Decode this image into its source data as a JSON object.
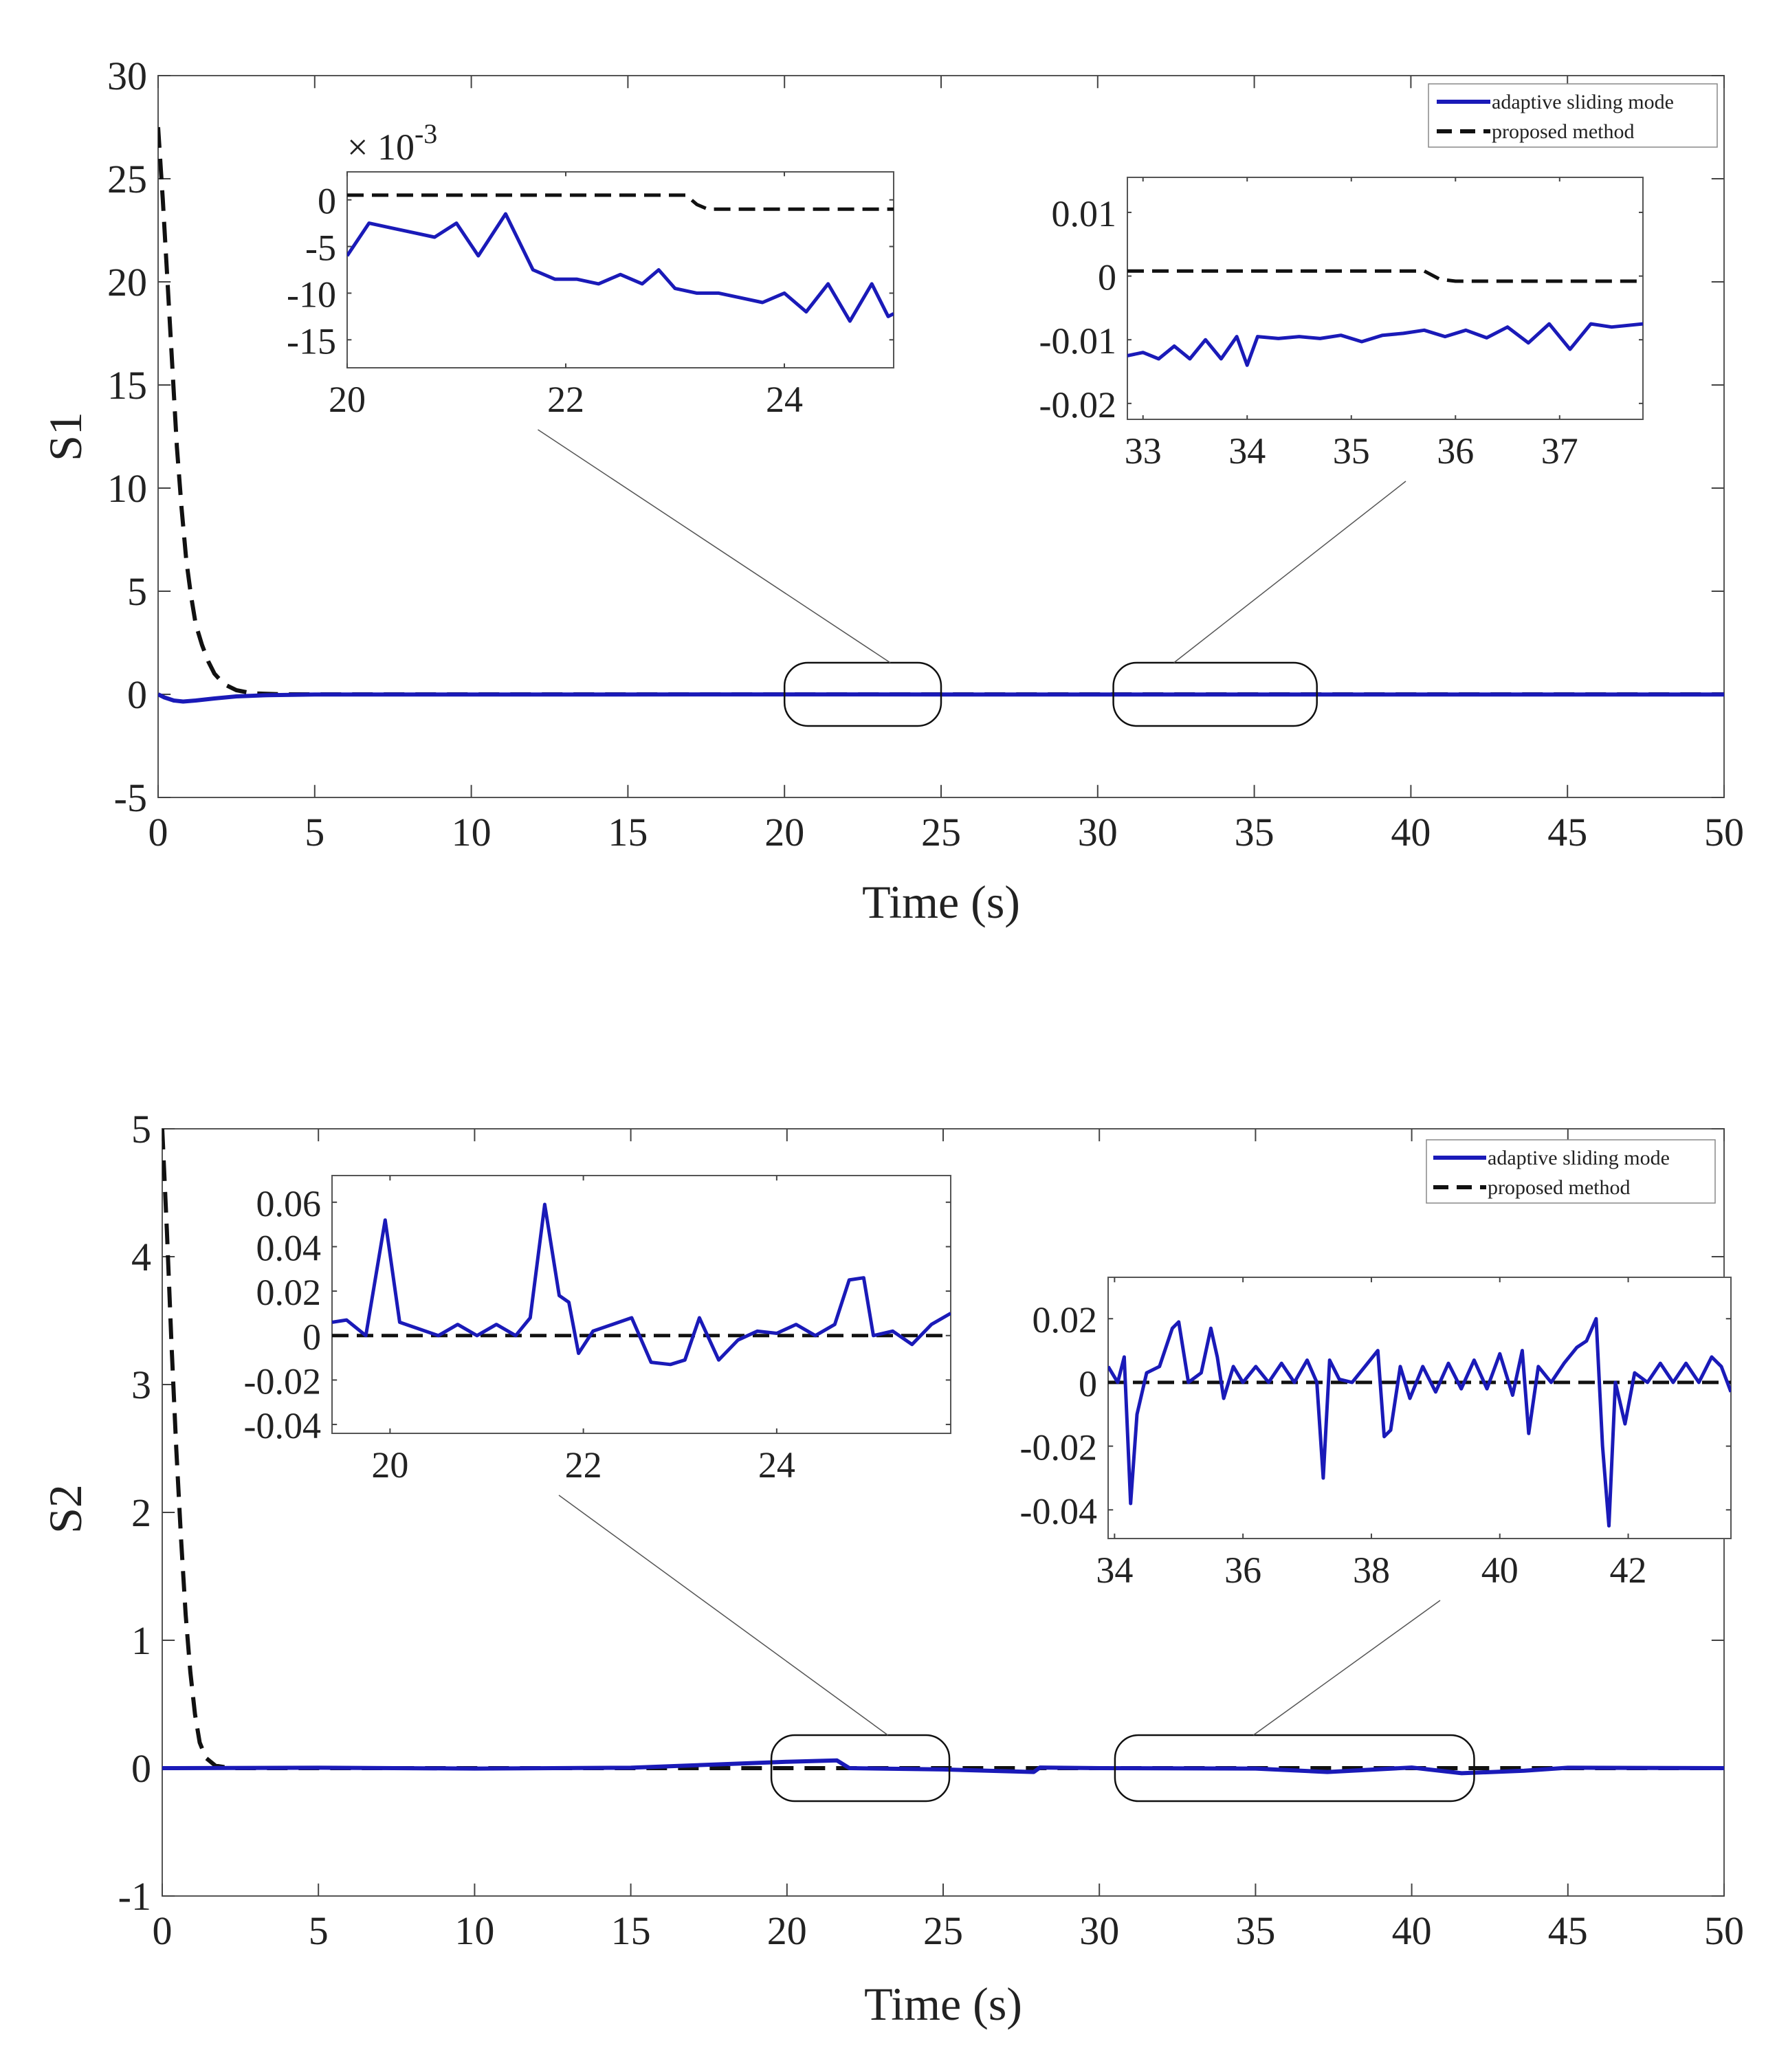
{
  "colors": {
    "adaptive": "#1a1ab8",
    "proposed": "#111111",
    "axis": "#444444"
  },
  "chart_data": [
    {
      "type": "line",
      "id": "s1",
      "ylabel": "S1",
      "xlabel": "Time (s)",
      "xlim": [
        0,
        50
      ],
      "ylim": [
        -5,
        30
      ],
      "xticks": [
        0,
        5,
        10,
        15,
        20,
        25,
        30,
        35,
        40,
        45,
        50
      ],
      "yticks": [
        -5,
        0,
        5,
        10,
        15,
        20,
        25,
        30
      ],
      "legend": {
        "position": "top-right",
        "entries": [
          "adaptive sliding mode",
          "proposed method"
        ]
      },
      "series": [
        {
          "name": "adaptive sliding mode",
          "style": "solid",
          "x": [
            0,
            0.2,
            0.5,
            0.8,
            1.2,
            1.8,
            2.5,
            3.5,
            5,
            10,
            20,
            30,
            40,
            50
          ],
          "y": [
            0,
            -0.15,
            -0.3,
            -0.35,
            -0.3,
            -0.2,
            -0.1,
            -0.04,
            -0.01,
            -0.01,
            -0.005,
            -0.01,
            -0.01,
            -0.01
          ]
        },
        {
          "name": "proposed method",
          "style": "dashed",
          "x": [
            0,
            0.15,
            0.3,
            0.45,
            0.6,
            0.75,
            0.9,
            1.05,
            1.2,
            1.4,
            1.6,
            1.8,
            2.1,
            2.5,
            3,
            4,
            50
          ],
          "y": [
            27.5,
            24,
            20,
            16,
            12,
            9,
            6.5,
            4.8,
            3.4,
            2.4,
            1.6,
            1.0,
            0.5,
            0.2,
            0.05,
            0,
            0
          ]
        }
      ],
      "insets": [
        {
          "id": "s1-inset-a",
          "xlim": [
            20,
            25
          ],
          "ylim": [
            -0.018,
            0.003
          ],
          "xticks": [
            20,
            22,
            24
          ],
          "yticks": [
            0,
            -0.005,
            -0.01,
            -0.015
          ],
          "ytick_labels": [
            "0",
            "-5",
            "-10",
            "-15"
          ],
          "exponent": "× 10",
          "exponent_power": "-3",
          "zoom_box": [
            20,
            25
          ],
          "series": [
            {
              "name": "adaptive sliding mode",
              "style": "solid",
              "x": [
                20,
                20.2,
                20.4,
                20.6,
                20.8,
                21.0,
                21.2,
                21.45,
                21.7,
                21.9,
                22.1,
                22.3,
                22.5,
                22.7,
                22.85,
                23.0,
                23.2,
                23.4,
                23.6,
                23.8,
                24.0,
                24.2,
                24.4,
                24.6,
                24.8,
                24.95,
                25.0
              ],
              "y": [
                -0.006,
                -0.0025,
                -0.003,
                -0.0035,
                -0.004,
                -0.0025,
                -0.006,
                -0.0015,
                -0.0075,
                -0.0085,
                -0.0085,
                -0.009,
                -0.008,
                -0.009,
                -0.0075,
                -0.0095,
                -0.01,
                -0.01,
                -0.0105,
                -0.011,
                -0.01,
                -0.012,
                -0.009,
                -0.013,
                -0.009,
                -0.0125,
                -0.0122
              ]
            },
            {
              "name": "proposed method",
              "style": "dashed",
              "x": [
                20,
                23.1,
                23.2,
                23.3,
                25
              ],
              "y": [
                0.0005,
                0.0005,
                -0.0005,
                -0.001,
                -0.001
              ]
            }
          ]
        },
        {
          "id": "s1-inset-b",
          "xlim": [
            32.85,
            37.8
          ],
          "ylim": [
            -0.0225,
            0.0155
          ],
          "xticks": [
            33,
            34,
            35,
            36,
            37
          ],
          "yticks": [
            0.01,
            0,
            -0.01,
            -0.02
          ],
          "ytick_labels": [
            "0.01",
            "0",
            "-0.01",
            "-0.02"
          ],
          "zoom_box": [
            30.5,
            37
          ],
          "series": [
            {
              "name": "adaptive sliding mode",
              "style": "solid",
              "x": [
                32.85,
                33.0,
                33.15,
                33.3,
                33.45,
                33.6,
                33.75,
                33.9,
                34.0,
                34.1,
                34.3,
                34.5,
                34.7,
                34.9,
                35.1,
                35.3,
                35.5,
                35.7,
                35.9,
                36.1,
                36.3,
                36.5,
                36.7,
                36.9,
                37.1,
                37.3,
                37.5,
                37.8
              ],
              "y": [
                -0.0125,
                -0.012,
                -0.013,
                -0.011,
                -0.013,
                -0.01,
                -0.013,
                -0.0095,
                -0.014,
                -0.0095,
                -0.0098,
                -0.0095,
                -0.0098,
                -0.0093,
                -0.0103,
                -0.0093,
                -0.009,
                -0.0085,
                -0.0095,
                -0.0085,
                -0.0097,
                -0.008,
                -0.0105,
                -0.0075,
                -0.0115,
                -0.0075,
                -0.008,
                -0.0075
              ]
            },
            {
              "name": "proposed method",
              "style": "dashed",
              "x": [
                32.85,
                35.7,
                35.85,
                36.0,
                37.8
              ],
              "y": [
                0.0008,
                0.0008,
                -0.0005,
                -0.0008,
                -0.0008
              ]
            }
          ]
        }
      ]
    },
    {
      "type": "line",
      "id": "s2",
      "ylabel": "S2",
      "xlabel": "Time (s)",
      "xlim": [
        0,
        50
      ],
      "ylim": [
        -1,
        5
      ],
      "xticks": [
        0,
        5,
        10,
        15,
        20,
        25,
        30,
        35,
        40,
        45,
        50
      ],
      "yticks": [
        -1,
        0,
        1,
        2,
        3,
        4,
        5
      ],
      "legend": {
        "position": "top-right",
        "entries": [
          "adaptive sliding mode",
          "proposed method"
        ]
      },
      "series": [
        {
          "name": "adaptive sliding mode",
          "style": "solid",
          "x": [
            0,
            5,
            10,
            15,
            20,
            21.6,
            22,
            25,
            27.9,
            28.1,
            30,
            35,
            37.3,
            40,
            41.6,
            43.6,
            45,
            50
          ],
          "y": [
            0,
            0.003,
            -0.003,
            0.003,
            0.05,
            0.06,
            0,
            -0.01,
            -0.03,
            0.005,
            0,
            -0.003,
            -0.03,
            0.005,
            -0.04,
            -0.02,
            0.003,
            0
          ]
        },
        {
          "name": "proposed method",
          "style": "dashed",
          "x": [
            0,
            0.15,
            0.3,
            0.45,
            0.6,
            0.75,
            0.9,
            1.05,
            1.2,
            1.4,
            1.7,
            2.2,
            50
          ],
          "y": [
            5,
            4.2,
            3.3,
            2.5,
            1.8,
            1.2,
            0.75,
            0.42,
            0.2,
            0.08,
            0.02,
            0,
            0
          ]
        }
      ],
      "insets": [
        {
          "id": "s2-inset-a",
          "xlim": [
            19.4,
            25.8
          ],
          "ylim": [
            -0.044,
            0.072
          ],
          "xticks": [
            20,
            22,
            24
          ],
          "yticks": [
            0.06,
            0.04,
            0.02,
            0,
            -0.02,
            -0.04
          ],
          "ytick_labels": [
            "0.06",
            "0.04",
            "0.02",
            "0",
            "-0.02",
            "-0.04"
          ],
          "zoom_box": [
            19.5,
            25.2
          ],
          "series": [
            {
              "name": "adaptive sliding mode",
              "style": "solid",
              "x": [
                19.4,
                19.55,
                19.75,
                19.95,
                20.1,
                20.3,
                20.5,
                20.7,
                20.9,
                21.1,
                21.3,
                21.45,
                21.6,
                21.75,
                21.85,
                21.95,
                22.1,
                22.3,
                22.5,
                22.7,
                22.9,
                23.05,
                23.2,
                23.4,
                23.6,
                23.8,
                24.0,
                24.2,
                24.4,
                24.6,
                24.75,
                24.9,
                25.0,
                25.2,
                25.4,
                25.6,
                25.8
              ],
              "y": [
                0.006,
                0.007,
                0.0,
                0.052,
                0.006,
                0.003,
                0.0,
                0.005,
                0.0,
                0.005,
                0.0,
                0.008,
                0.059,
                0.018,
                0.015,
                -0.008,
                0.002,
                0.005,
                0.008,
                -0.012,
                -0.013,
                -0.011,
                0.008,
                -0.011,
                -0.002,
                0.002,
                0.001,
                0.005,
                0.0,
                0.005,
                0.025,
                0.026,
                0.0,
                0.002,
                -0.004,
                0.005,
                0.01
              ]
            },
            {
              "name": "proposed method",
              "style": "dashed",
              "x": [
                19.4,
                25.8
              ],
              "y": [
                0.0,
                0.0
              ]
            }
          ]
        },
        {
          "id": "s2-inset-b",
          "xlim": [
            33.9,
            43.6
          ],
          "ylim": [
            -0.049,
            0.033
          ],
          "xticks": [
            34,
            36,
            38,
            40,
            42
          ],
          "yticks": [
            0.02,
            0,
            -0.02,
            -0.04
          ],
          "ytick_labels": [
            "0.02",
            "0",
            "-0.02",
            "-0.04"
          ],
          "zoom_box": [
            30.5,
            42
          ],
          "series": [
            {
              "name": "adaptive sliding mode",
              "style": "solid",
              "x": [
                33.9,
                34.05,
                34.15,
                34.25,
                34.35,
                34.5,
                34.7,
                34.9,
                35.0,
                35.15,
                35.35,
                35.5,
                35.6,
                35.7,
                35.85,
                36.0,
                36.2,
                36.4,
                36.6,
                36.8,
                37.0,
                37.15,
                37.25,
                37.35,
                37.5,
                37.7,
                37.9,
                38.1,
                38.2,
                38.3,
                38.45,
                38.6,
                38.8,
                39.0,
                39.2,
                39.4,
                39.6,
                39.8,
                40.0,
                40.2,
                40.35,
                40.45,
                40.6,
                40.8,
                41.0,
                41.2,
                41.35,
                41.5,
                41.6,
                41.7,
                41.8,
                41.95,
                42.1,
                42.3,
                42.5,
                42.7,
                42.9,
                43.1,
                43.3,
                43.45,
                43.6
              ],
              "y": [
                0.005,
                0.0,
                0.008,
                -0.038,
                -0.01,
                0.003,
                0.005,
                0.017,
                0.019,
                0.0,
                0.003,
                0.017,
                0.008,
                -0.005,
                0.005,
                0.0,
                0.005,
                0.0,
                0.006,
                0.0,
                0.007,
                0.0,
                -0.03,
                0.007,
                0.001,
                0.0,
                0.005,
                0.01,
                -0.017,
                -0.015,
                0.005,
                -0.005,
                0.005,
                -0.003,
                0.006,
                -0.002,
                0.007,
                -0.002,
                0.009,
                -0.004,
                0.01,
                -0.016,
                0.005,
                0.0,
                0.006,
                0.011,
                0.013,
                0.02,
                -0.02,
                -0.045,
                0.0,
                -0.013,
                0.003,
                0.0,
                0.006,
                0.0,
                0.006,
                0.0,
                0.008,
                0.005,
                -0.003
              ]
            },
            {
              "name": "proposed method",
              "style": "dashed",
              "x": [
                33.9,
                43.6
              ],
              "y": [
                0.0,
                0.0
              ]
            }
          ]
        }
      ]
    }
  ]
}
